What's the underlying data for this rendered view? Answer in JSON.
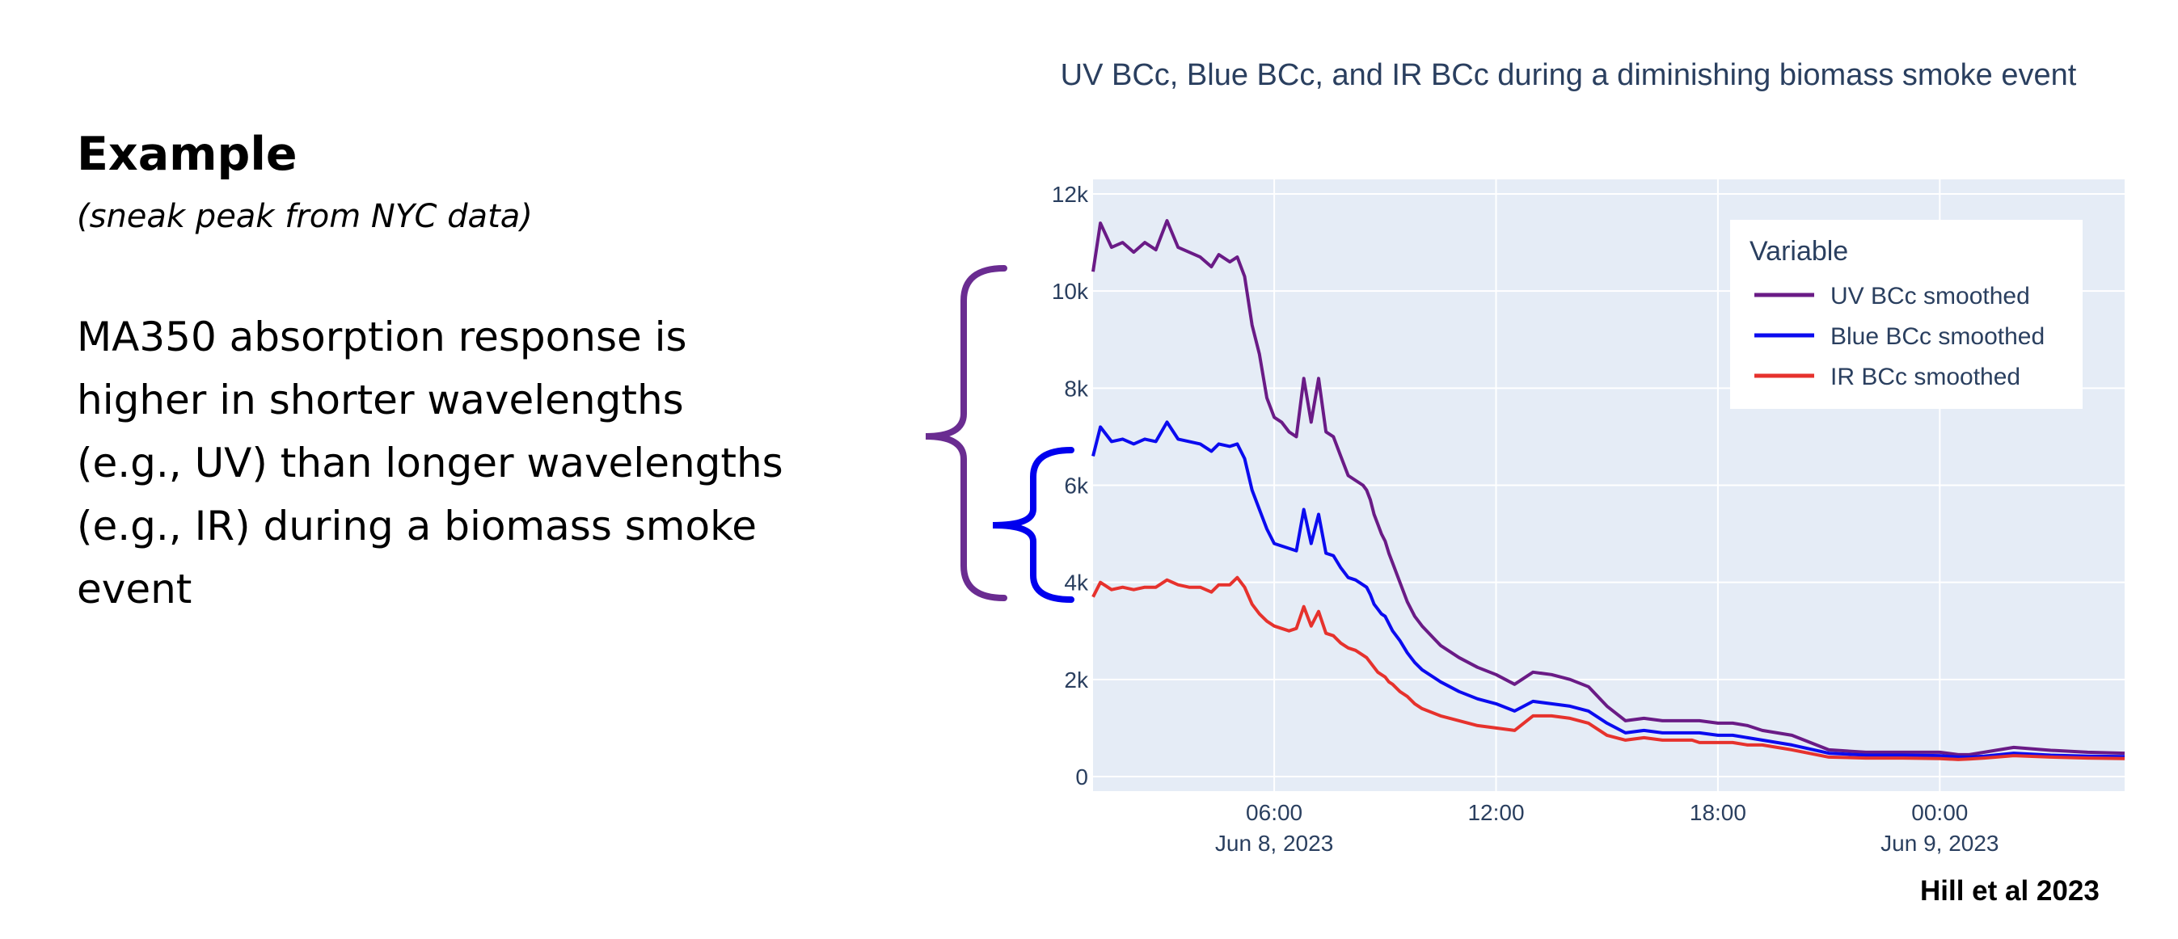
{
  "slide": {
    "heading": "Example",
    "subheading": "(sneak peak from NYC data)",
    "body_lines": [
      "MA350 absorption response is",
      "higher in shorter wavelengths",
      "(e.g., UV) than longer wavelengths",
      "(e.g., IR) during a biomass smoke",
      "event"
    ],
    "citation": "Hill et al 2023",
    "bracket_colors": {
      "uv": "#6a2c91",
      "blue": "#0000ee"
    }
  },
  "chart_data": {
    "type": "line",
    "title": "UV BCc, Blue BCc, and IR BCc during a diminishing biomass smoke event",
    "xlabel": "",
    "ylabel": "",
    "x_unit": "hours since 2023-06-08 00:00",
    "xlim": [
      1.1,
      29.0
    ],
    "ylim": [
      -300,
      12300
    ],
    "x_ticks": [
      {
        "x": 6,
        "label": "06:00",
        "sublabel": "Jun 8, 2023"
      },
      {
        "x": 12,
        "label": "12:00",
        "sublabel": ""
      },
      {
        "x": 18,
        "label": "18:00",
        "sublabel": ""
      },
      {
        "x": 24,
        "label": "00:00",
        "sublabel": "Jun 9, 2023"
      }
    ],
    "y_ticks": [
      {
        "y": 0,
        "label": "0"
      },
      {
        "y": 2000,
        "label": "2k"
      },
      {
        "y": 4000,
        "label": "4k"
      },
      {
        "y": 6000,
        "label": "6k"
      },
      {
        "y": 8000,
        "label": "8k"
      },
      {
        "y": 10000,
        "label": "10k"
      },
      {
        "y": 12000,
        "label": "12k"
      }
    ],
    "grid": true,
    "legend": {
      "title": "Variable",
      "position": "top-right"
    },
    "background": "#e5ecf6",
    "series": [
      {
        "name": "UV BCc smoothed",
        "color": "#6a1b86",
        "x": [
          1.1,
          1.3,
          1.6,
          1.9,
          2.2,
          2.5,
          2.8,
          3.1,
          3.4,
          3.7,
          4.0,
          4.3,
          4.5,
          4.8,
          5.0,
          5.2,
          5.4,
          5.6,
          5.8,
          6.0,
          6.2,
          6.4,
          6.6,
          6.8,
          7.0,
          7.2,
          7.4,
          7.6,
          7.8,
          8.0,
          8.2,
          8.4,
          8.5,
          8.6,
          8.7,
          8.8,
          8.9,
          9.0,
          9.1,
          9.2,
          9.4,
          9.6,
          9.8,
          10.0,
          10.5,
          11.0,
          11.5,
          12.0,
          12.5,
          13.0,
          13.5,
          14.0,
          14.5,
          15.0,
          15.5,
          16.0,
          16.5,
          17.0,
          17.3,
          17.5,
          18.0,
          18.4,
          18.8,
          19.2,
          19.6,
          20.0,
          21.0,
          22.0,
          23.0,
          24.0,
          24.5,
          24.8,
          25.2,
          26.0,
          27.0,
          28.0,
          29.0
        ],
        "y": [
          10400,
          11400,
          10900,
          11000,
          10800,
          11000,
          10850,
          11450,
          10900,
          10800,
          10700,
          10500,
          10750,
          10600,
          10700,
          10300,
          9300,
          8700,
          7800,
          7400,
          7300,
          7100,
          7000,
          8200,
          7300,
          8200,
          7100,
          7000,
          6600,
          6200,
          6100,
          6000,
          5900,
          5700,
          5400,
          5200,
          5000,
          4850,
          4600,
          4400,
          4000,
          3600,
          3300,
          3100,
          2700,
          2450,
          2250,
          2100,
          1900,
          2150,
          2100,
          2000,
          1850,
          1450,
          1150,
          1200,
          1150,
          1150,
          1150,
          1150,
          1100,
          1100,
          1050,
          950,
          900,
          850,
          550,
          500,
          500,
          500,
          450,
          450,
          500,
          600,
          540,
          500,
          480
        ]
      },
      {
        "name": "Blue BCc smoothed",
        "color": "#0b0bef",
        "x": [
          1.1,
          1.3,
          1.6,
          1.9,
          2.2,
          2.5,
          2.8,
          3.1,
          3.4,
          3.7,
          4.0,
          4.3,
          4.5,
          4.8,
          5.0,
          5.2,
          5.4,
          5.6,
          5.8,
          6.0,
          6.2,
          6.4,
          6.6,
          6.8,
          7.0,
          7.2,
          7.4,
          7.6,
          7.8,
          8.0,
          8.2,
          8.4,
          8.5,
          8.6,
          8.7,
          8.8,
          8.9,
          9.0,
          9.1,
          9.2,
          9.4,
          9.6,
          9.8,
          10.0,
          10.5,
          11.0,
          11.5,
          12.0,
          12.5,
          13.0,
          13.5,
          14.0,
          14.5,
          15.0,
          15.5,
          16.0,
          16.5,
          17.0,
          17.3,
          17.5,
          18.0,
          18.4,
          18.8,
          19.2,
          19.6,
          20.0,
          21.0,
          22.0,
          23.0,
          24.0,
          24.5,
          24.8,
          25.2,
          26.0,
          27.0,
          28.0,
          29.0
        ],
        "y": [
          6600,
          7200,
          6900,
          6950,
          6850,
          6950,
          6900,
          7300,
          6950,
          6900,
          6850,
          6700,
          6850,
          6800,
          6850,
          6550,
          5900,
          5500,
          5100,
          4800,
          4750,
          4700,
          4650,
          5500,
          4800,
          5400,
          4600,
          4550,
          4300,
          4100,
          4050,
          3950,
          3900,
          3750,
          3550,
          3450,
          3350,
          3300,
          3150,
          3000,
          2800,
          2550,
          2350,
          2200,
          1950,
          1750,
          1600,
          1500,
          1350,
          1550,
          1500,
          1450,
          1350,
          1100,
          900,
          950,
          900,
          900,
          900,
          900,
          850,
          850,
          800,
          750,
          700,
          650,
          480,
          440,
          440,
          430,
          400,
          400,
          420,
          480,
          440,
          420,
          410
        ]
      },
      {
        "name": "IR BCc smoothed",
        "color": "#e6322d",
        "x": [
          1.1,
          1.3,
          1.6,
          1.9,
          2.2,
          2.5,
          2.8,
          3.1,
          3.4,
          3.7,
          4.0,
          4.3,
          4.5,
          4.8,
          5.0,
          5.2,
          5.4,
          5.6,
          5.8,
          6.0,
          6.2,
          6.4,
          6.6,
          6.8,
          7.0,
          7.2,
          7.4,
          7.6,
          7.8,
          8.0,
          8.2,
          8.4,
          8.5,
          8.6,
          8.7,
          8.8,
          8.9,
          9.0,
          9.1,
          9.2,
          9.4,
          9.6,
          9.8,
          10.0,
          10.5,
          11.0,
          11.5,
          12.0,
          12.5,
          13.0,
          13.5,
          14.0,
          14.5,
          15.0,
          15.5,
          16.0,
          16.5,
          17.0,
          17.3,
          17.5,
          18.0,
          18.4,
          18.8,
          19.2,
          19.6,
          20.0,
          21.0,
          22.0,
          23.0,
          24.0,
          24.5,
          24.8,
          25.2,
          26.0,
          27.0,
          28.0,
          29.0
        ],
        "y": [
          3700,
          4000,
          3850,
          3900,
          3850,
          3900,
          3900,
          4050,
          3950,
          3900,
          3900,
          3800,
          3950,
          3950,
          4100,
          3900,
          3550,
          3350,
          3200,
          3100,
          3050,
          3000,
          3050,
          3500,
          3100,
          3400,
          2950,
          2900,
          2750,
          2650,
          2600,
          2500,
          2450,
          2350,
          2250,
          2150,
          2100,
          2050,
          1950,
          1900,
          1750,
          1650,
          1500,
          1400,
          1250,
          1150,
          1050,
          1000,
          950,
          1250,
          1250,
          1200,
          1100,
          850,
          750,
          800,
          750,
          750,
          750,
          700,
          700,
          700,
          650,
          650,
          600,
          550,
          400,
          380,
          380,
          370,
          350,
          360,
          380,
          430,
          400,
          380,
          370
        ]
      }
    ]
  }
}
